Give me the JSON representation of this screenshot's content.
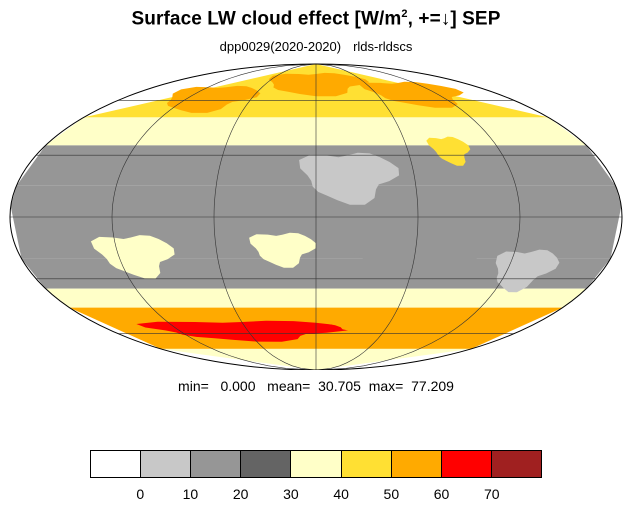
{
  "figure": {
    "title_main": "Surface LW cloud effect [W/m",
    "title_sup": "2",
    "title_rest": ", +=↓]  SEP",
    "subtitle_run": "dpp0029(2020-2020)",
    "subtitle_var": "rlds-rldscs"
  },
  "stats": {
    "text": "min=   0.000   mean=  30.705  max=  77.209",
    "min": 0.0,
    "mean": 30.705,
    "max": 77.209
  },
  "colorbar": {
    "colors": [
      "#ffffff",
      "#c8c8c8",
      "#969696",
      "#646464",
      "#ffffc8",
      "#ffe033",
      "#ffaa00",
      "#ff0000",
      "#a02020"
    ],
    "tick_labels": [
      "0",
      "10",
      "20",
      "30",
      "40",
      "50",
      "60",
      "70"
    ],
    "boundaries": [
      0,
      10,
      20,
      30,
      40,
      50,
      60,
      70
    ]
  },
  "map": {
    "projection": "mollweide",
    "gridlines": true,
    "meridian_step_deg": 60,
    "parallel_step_deg": 30,
    "zonal_bands_deg": [
      {
        "lat_min": 50,
        "lat_max": 90,
        "value": 55
      },
      {
        "lat_min": 35,
        "lat_max": 50,
        "value": 45
      },
      {
        "lat_min": 15,
        "lat_max": 35,
        "value": 25
      },
      {
        "lat_min": 5,
        "lat_max": 15,
        "value": 28
      },
      {
        "lat_min": -20,
        "lat_max": 5,
        "value": 24
      },
      {
        "lat_min": -35,
        "lat_max": -20,
        "value": 28
      },
      {
        "lat_min": -45,
        "lat_max": -35,
        "value": 48
      },
      {
        "lat_min": -70,
        "lat_max": -45,
        "value": 62
      },
      {
        "lat_min": -90,
        "lat_max": -70,
        "value": 45
      }
    ],
    "features_deg": [
      {
        "lon": -20,
        "lat": -15,
        "rlon": 18,
        "rlat": 8,
        "value": 42
      },
      {
        "lon": -110,
        "lat": -18,
        "rlon": 22,
        "rlat": 10,
        "value": 42
      },
      {
        "lon": 88,
        "lat": 33,
        "rlon": 12,
        "rlat": 7,
        "value": 55
      },
      {
        "lon": 20,
        "lat": 20,
        "rlon": 28,
        "rlat": 12,
        "value": 12
      },
      {
        "lon": 130,
        "lat": -25,
        "rlon": 18,
        "rlat": 10,
        "value": 15
      },
      {
        "lon": 60,
        "lat": -20,
        "rlon": 35,
        "rlat": 10,
        "value": 22
      },
      {
        "lon": -55,
        "lat": -5,
        "rlon": 12,
        "rlat": 12,
        "value": 28
      },
      {
        "lon": 0,
        "lat": 72,
        "rlon": 60,
        "rlat": 8,
        "value": 68
      },
      {
        "lon": -100,
        "lat": 62,
        "rlon": 40,
        "rlat": 8,
        "value": 65
      },
      {
        "lon": 100,
        "lat": 65,
        "rlon": 45,
        "rlat": 8,
        "value": 64
      },
      {
        "lon": -60,
        "lat": -58,
        "rlon": 80,
        "rlat": 6,
        "value": 70
      },
      {
        "lon": 70,
        "lat": -55,
        "rlon": 60,
        "rlat": 5,
        "value": 66
      }
    ]
  }
}
